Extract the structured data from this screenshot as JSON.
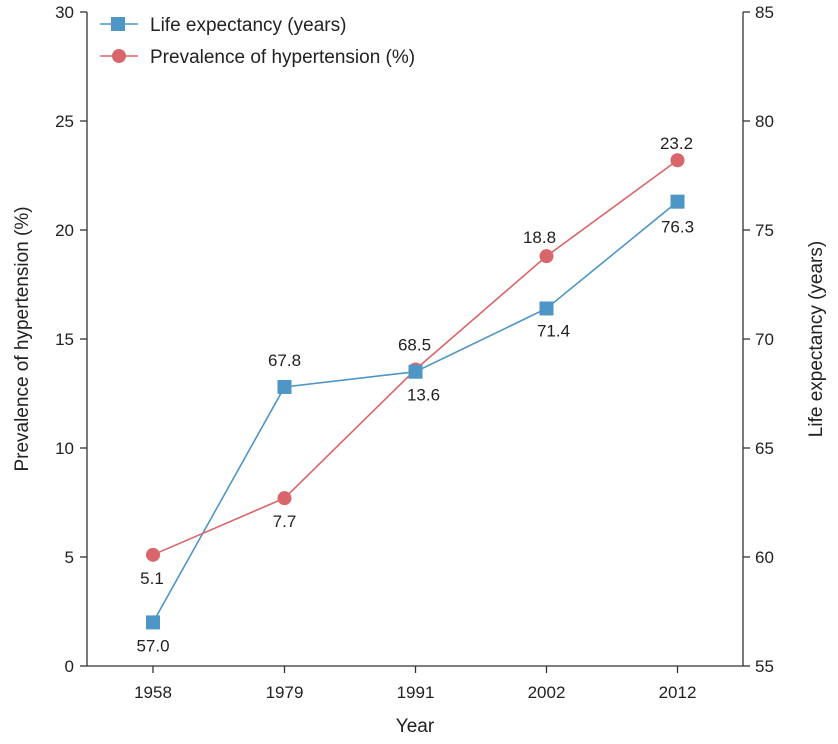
{
  "chart_data": {
    "type": "line",
    "categories": [
      "1958",
      "1979",
      "1991",
      "2002",
      "2012"
    ],
    "xlabel": "Year",
    "ylabel_left": "Prevalence of hypertension (%)",
    "ylabel_right": "Life expectancy (years)",
    "ylim_left": [
      0,
      30
    ],
    "ylim_right": [
      55,
      85
    ],
    "yticks_left": [
      "0",
      "5",
      "10",
      "15",
      "20",
      "25",
      "30"
    ],
    "yticks_right": [
      "55",
      "60",
      "65",
      "70",
      "75",
      "80",
      "85"
    ],
    "grid": false,
    "legend_position": "top-left",
    "series": [
      {
        "name": "Life expectancy (years)",
        "axis": "right",
        "marker": "square",
        "color": "#4e96c6",
        "values": [
          57.0,
          67.8,
          68.5,
          71.4,
          76.3
        ],
        "labels": [
          "57.0",
          "67.8",
          "68.5",
          "71.4",
          "76.3"
        ]
      },
      {
        "name": "Prevalence of hypertension (%)",
        "axis": "left",
        "marker": "circle",
        "color": "#d9666a",
        "values": [
          5.1,
          7.7,
          13.6,
          18.8,
          23.2
        ],
        "labels": [
          "5.1",
          "7.7",
          "13.6",
          "18.8",
          "23.2"
        ]
      }
    ]
  }
}
